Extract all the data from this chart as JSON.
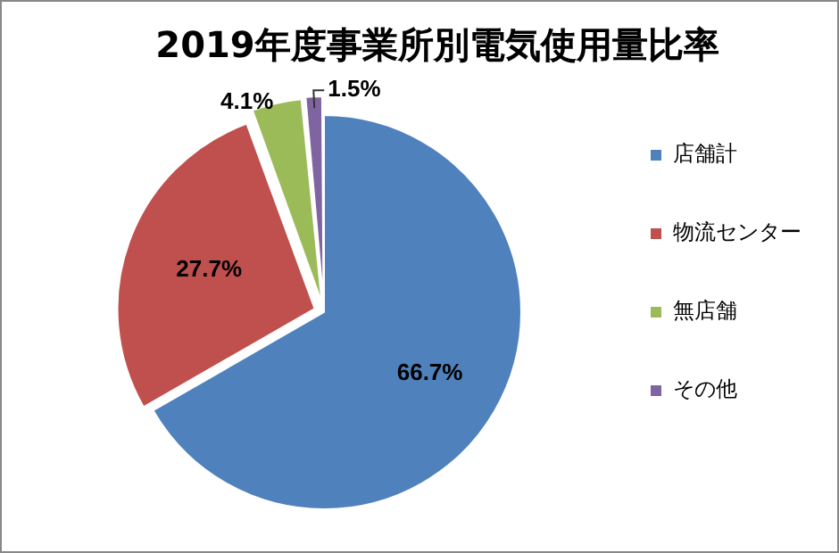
{
  "chart_data": {
    "type": "pie",
    "title": "2019年度事業所別電気使用量比率",
    "categories": [
      "店舗計",
      "物流センター",
      "無店舗",
      "その他"
    ],
    "values": [
      66.7,
      27.7,
      4.1,
      1.5
    ],
    "colors": [
      "#4f81bd",
      "#c0504d",
      "#9bbb59",
      "#8064a2"
    ],
    "value_labels": [
      "66.7%",
      "27.7%",
      "4.1%",
      "1.5%"
    ],
    "legend": "right"
  }
}
